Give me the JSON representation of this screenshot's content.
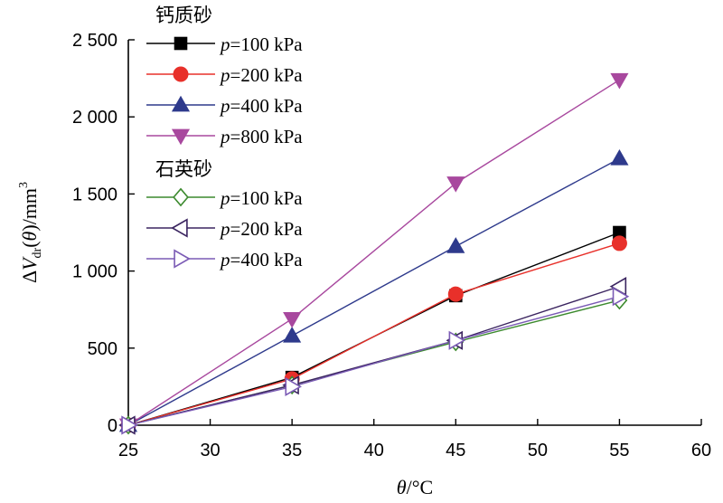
{
  "chart_data": {
    "type": "line",
    "xlabel": "θ/°C",
    "ylabel": "ΔVdr(θ)/mm3",
    "xlim": [
      25,
      60
    ],
    "ylim": [
      0,
      2500
    ],
    "x_ticks": [
      "25",
      "30",
      "35",
      "40",
      "45",
      "50",
      "55",
      "60"
    ],
    "y_ticks": [
      "0",
      "500",
      "1 000",
      "1 500",
      "2 000",
      "2 500"
    ],
    "x": [
      25,
      35,
      45,
      55
    ],
    "grid": false,
    "legend_position": "top-left",
    "groups": [
      {
        "name": "钙质砂",
        "series": [
          {
            "label": "=100 kPa",
            "color": "#000000",
            "marker": "square",
            "filled": true,
            "values": [
              0,
              310,
              840,
              1250
            ]
          },
          {
            "label": "=200 kPa",
            "color": "#e8302a",
            "marker": "circle",
            "filled": true,
            "values": [
              0,
              300,
              850,
              1180
            ]
          },
          {
            "label": "=400 kPa",
            "color": "#2e3a8c",
            "marker": "triangle-up",
            "filled": true,
            "values": [
              0,
              580,
              1160,
              1730
            ]
          },
          {
            "label": "=800 kPa",
            "color": "#a8489e",
            "marker": "triangle-down",
            "filled": true,
            "values": [
              0,
              690,
              1570,
              2240
            ]
          }
        ]
      },
      {
        "name": "石英砂",
        "series": [
          {
            "label": "=100 kPa",
            "color": "#3c8a2e",
            "marker": "diamond",
            "filled": false,
            "values": [
              0,
              260,
              540,
              810
            ]
          },
          {
            "label": "=200 kPa",
            "color": "#3b2560",
            "marker": "triangle-left",
            "filled": false,
            "values": [
              0,
              260,
              550,
              900
            ]
          },
          {
            "label": "=400 kPa",
            "color": "#7b5bb5",
            "marker": "triangle-right",
            "filled": false,
            "values": [
              0,
              250,
              550,
              835
            ]
          }
        ]
      }
    ]
  }
}
